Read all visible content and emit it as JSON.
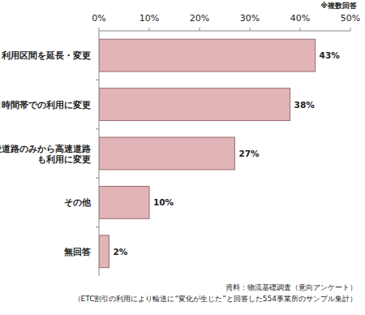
{
  "chart_data": {
    "type": "bar",
    "orientation": "horizontal",
    "annotation": "※複数回答",
    "source": [
      "資料：物流基礎調査（意向アンケート）",
      "（ETC割引の利用により輸送に“変化が生じた”と回答した554事業所のサンプル集計）"
    ],
    "categories": [
      "利用区間を延長・変更",
      "引時間帯での利用に変更",
      "般道路のみから高速道路も利用に変更",
      "その他",
      "無回答"
    ],
    "values": [
      43,
      38,
      27,
      10,
      2
    ],
    "value_labels": [
      "43%",
      "38%",
      "27%",
      "10%",
      "2%"
    ],
    "data_labels": true,
    "color": "#e2b4b7",
    "xlim": [
      0,
      50
    ],
    "xticks": [
      {
        "value": 0,
        "label": "0%"
      },
      {
        "value": 10,
        "label": "10%"
      },
      {
        "value": 20,
        "label": "20%"
      },
      {
        "value": 30,
        "label": "30%"
      },
      {
        "value": 40,
        "label": "40%"
      },
      {
        "value": 50,
        "label": "50%"
      }
    ],
    "grid": false
  }
}
